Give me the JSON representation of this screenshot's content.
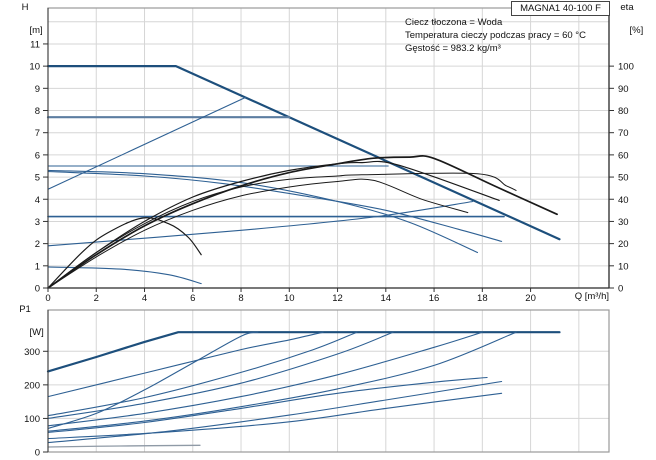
{
  "model_badge": "MAGNA1 40-100 F",
  "info": {
    "line1": "Ciecz tłoczona = Woda",
    "line2": "Temperatura cieczy podczas pracy = 60 °C",
    "line3": "Gęstość = 983.2 kg/m³"
  },
  "labels": {
    "h_title": "H",
    "h_unit": "[m]",
    "eta_title": "eta",
    "eta_unit": "[%]",
    "q_axis": "Q [m³/h]",
    "p1_title": "P1",
    "p1_unit": "[W]"
  },
  "colors": {
    "blue": "#2e6093",
    "blue_dark": "#1d4f7c",
    "slate": "#5c7da1",
    "black": "#1a1a1a",
    "gray": "#8f9aa6",
    "grid": "#d6d6d6",
    "frame": "#9a9a9a",
    "axis": "#333333",
    "text": "#111111"
  },
  "chart_data": [
    {
      "type": "line",
      "id": "hq-eta-chart",
      "x": {
        "min": 0,
        "max": 23.25,
        "tick_labels": [
          0,
          2,
          4,
          6,
          8,
          10,
          12,
          14,
          16,
          18,
          20
        ],
        "grid": [
          2,
          4,
          6,
          8,
          10,
          12,
          14,
          16,
          18,
          20,
          22
        ]
      },
      "y_left": {
        "name": "H [m]",
        "min": 0,
        "max": 12.62,
        "tick_labels": [
          0,
          1,
          2,
          3,
          4,
          5,
          6,
          7,
          8,
          9,
          10,
          11
        ],
        "grid": [
          1,
          2,
          3,
          4,
          5,
          6,
          7,
          8,
          9,
          10,
          11,
          12
        ]
      },
      "y_right": {
        "name": "eta [%]",
        "min": 0,
        "max": 126.2,
        "tick_labels": [
          0,
          10,
          20,
          30,
          40,
          50,
          60,
          70,
          80,
          90,
          100
        ]
      },
      "series": [
        {
          "name": "max-speed-curve",
          "axis": "left",
          "color": "#1d4f7c",
          "width": 2.2,
          "smooth": false,
          "points": [
            [
              0,
              10
            ],
            [
              5.3,
              10
            ],
            [
              21.2,
              2.2
            ]
          ]
        },
        {
          "name": "const-pressure-7.7m",
          "axis": "left",
          "color": "#5c7da1",
          "width": 2.2,
          "smooth": false,
          "points": [
            [
              0,
              7.7
            ],
            [
              10.0,
              7.7
            ]
          ]
        },
        {
          "name": "const-pressure-5.5m",
          "axis": "left",
          "color": "#2e6093",
          "width": 1.1,
          "smooth": false,
          "points": [
            [
              0,
              5.5
            ],
            [
              14.1,
              5.5
            ]
          ]
        },
        {
          "name": "const-pressure-3.2m",
          "axis": "left",
          "color": "#2e6093",
          "width": 1.6,
          "smooth": false,
          "points": [
            [
              0,
              3.22
            ],
            [
              18.9,
              3.22
            ]
          ]
        },
        {
          "name": "prop-pressure-ramp-high",
          "axis": "left",
          "color": "#2e6093",
          "width": 1.1,
          "smooth": false,
          "points": [
            [
              0,
              4.45
            ],
            [
              8.2,
              8.6
            ]
          ]
        },
        {
          "name": "prop-pressure-ramp-low",
          "axis": "left",
          "color": "#2e6093",
          "width": 1.1,
          "smooth": true,
          "points": [
            [
              0,
              1.9
            ],
            [
              8,
              2.6
            ],
            [
              13.5,
              3.2
            ],
            [
              17.6,
              3.9
            ]
          ]
        },
        {
          "name": "speed-curve-a",
          "axis": "left",
          "color": "#2e6093",
          "width": 1.1,
          "smooth": true,
          "points": [
            [
              0,
              5.3
            ],
            [
              4,
              5.15
            ],
            [
              8,
              4.75
            ],
            [
              12,
              3.9
            ],
            [
              15,
              2.95
            ],
            [
              17.8,
              1.6
            ]
          ]
        },
        {
          "name": "speed-curve-b",
          "axis": "left",
          "color": "#2e6093",
          "width": 1.1,
          "smooth": true,
          "points": [
            [
              0,
              5.25
            ],
            [
              4,
              5.05
            ],
            [
              7.3,
              4.7
            ],
            [
              10.9,
              4.1
            ],
            [
              14,
              3.5
            ],
            [
              17,
              2.65
            ],
            [
              18.8,
              2.1
            ]
          ]
        },
        {
          "name": "min-speed-curve",
          "axis": "left",
          "color": "#2e6093",
          "width": 1.1,
          "smooth": true,
          "points": [
            [
              0,
              0.95
            ],
            [
              3,
              0.85
            ],
            [
              5,
              0.6
            ],
            [
              6.35,
              0.2
            ]
          ]
        },
        {
          "name": "eta-curve-max",
          "axis": "right",
          "color": "#1a1a1a",
          "width": 1.7,
          "smooth": true,
          "points": [
            [
              0,
              0
            ],
            [
              2,
              15
            ],
            [
              4,
              28
            ],
            [
              6,
              38
            ],
            [
              8,
              46
            ],
            [
              10,
              52
            ],
            [
              12,
              56
            ],
            [
              13.5,
              58.5
            ],
            [
              15,
              59
            ],
            [
              16,
              58.4
            ],
            [
              18.5,
              46
            ],
            [
              21.1,
              33.2
            ]
          ]
        },
        {
          "name": "eta-curve-2",
          "axis": "right",
          "color": "#1a1a1a",
          "width": 1.2,
          "smooth": true,
          "points": [
            [
              0,
              0
            ],
            [
              2,
              16
            ],
            [
              4,
              30
            ],
            [
              6,
              41
            ],
            [
              8,
              48
            ],
            [
              10,
              53
            ],
            [
              12,
              56
            ],
            [
              13,
              56.5
            ],
            [
              14.5,
              55.5
            ],
            [
              18.7,
              39.5
            ]
          ]
        },
        {
          "name": "eta-curve-flat-1",
          "axis": "right",
          "color": "#1a1a1a",
          "width": 1.0,
          "smooth": true,
          "points": [
            [
              0,
              0
            ],
            [
              2,
              16
            ],
            [
              4,
              29
            ],
            [
              6,
              39
            ],
            [
              8,
              45.5
            ],
            [
              10,
              49
            ],
            [
              12,
              50.5
            ],
            [
              13,
              51
            ],
            [
              17.8,
              51.5
            ],
            [
              19.0,
              46
            ],
            [
              19.4,
              44
            ]
          ]
        },
        {
          "name": "eta-curve-flat-2",
          "axis": "right",
          "color": "#1a1a1a",
          "width": 1.0,
          "smooth": true,
          "points": [
            [
              0,
              0
            ],
            [
              2,
              14
            ],
            [
              4,
              26
            ],
            [
              6,
              35
            ],
            [
              8,
              41.5
            ],
            [
              10,
              45.5
            ],
            [
              12,
              48
            ],
            [
              13.5,
              48.5
            ],
            [
              15.5,
              40
            ],
            [
              17.4,
              34
            ]
          ]
        },
        {
          "name": "eta-curve-min",
          "axis": "right",
          "color": "#1a1a1a",
          "width": 1.2,
          "smooth": true,
          "points": [
            [
              0,
              0
            ],
            [
              1.5,
              17
            ],
            [
              2.5,
              25
            ],
            [
              3.9,
              31.5
            ],
            [
              5,
              29
            ],
            [
              5.8,
              23
            ],
            [
              6.35,
              15
            ]
          ]
        }
      ]
    },
    {
      "type": "line",
      "id": "p1-power-chart",
      "x": {
        "min": 0,
        "max": 23.25,
        "tick_labels": [],
        "grid": [
          2,
          4,
          6,
          8,
          10,
          12,
          14,
          16,
          18,
          20,
          22
        ]
      },
      "y_left": {
        "name": "P1 [W]",
        "min": 0,
        "max": 423,
        "tick_labels": [
          0,
          100,
          200,
          300
        ],
        "grid": [
          100,
          200,
          300
        ]
      },
      "series": [
        {
          "name": "p1-max-limit",
          "axis": "left",
          "color": "#1d4f7c",
          "width": 2.2,
          "smooth": false,
          "points": [
            [
              0,
              240
            ],
            [
              2,
              283
            ],
            [
              4,
              328
            ],
            [
              5.4,
              357
            ],
            [
              21.2,
              357
            ]
          ]
        },
        {
          "name": "p1-curve-steep",
          "axis": "left",
          "color": "#2e6093",
          "width": 1.1,
          "smooth": true,
          "points": [
            [
              0,
              70
            ],
            [
              2,
              115
            ],
            [
              4,
              185
            ],
            [
              6,
              265
            ],
            [
              8,
              345
            ],
            [
              8.7,
              357
            ]
          ]
        },
        {
          "name": "p1-curve-cp77",
          "axis": "left",
          "color": "#2e6093",
          "width": 1.1,
          "smooth": true,
          "points": [
            [
              0,
              165
            ],
            [
              4,
              235
            ],
            [
              8,
              305
            ],
            [
              10,
              334
            ],
            [
              11.4,
              357
            ]
          ]
        },
        {
          "name": "p1-curve-2",
          "axis": "left",
          "color": "#2e6093",
          "width": 1.1,
          "smooth": true,
          "points": [
            [
              0,
              108
            ],
            [
              4,
              162
            ],
            [
              8,
              237
            ],
            [
              11,
              305
            ],
            [
              12.8,
              357
            ]
          ]
        },
        {
          "name": "p1-curve-3",
          "axis": "left",
          "color": "#2e6093",
          "width": 1.1,
          "smooth": true,
          "points": [
            [
              0,
              100
            ],
            [
              4,
              145
            ],
            [
              8,
              205
            ],
            [
              12,
              292
            ],
            [
              14.3,
              357
            ]
          ]
        },
        {
          "name": "p1-curve-4",
          "axis": "left",
          "color": "#2e6093",
          "width": 1.1,
          "smooth": true,
          "points": [
            [
              0,
              78
            ],
            [
              4,
              115
            ],
            [
              8,
              165
            ],
            [
              12,
              230
            ],
            [
              16,
              312
            ],
            [
              18,
              357
            ]
          ]
        },
        {
          "name": "p1-curve-5",
          "axis": "left",
          "color": "#2e6093",
          "width": 1.1,
          "smooth": true,
          "points": [
            [
              0,
              62
            ],
            [
              4,
              92
            ],
            [
              8,
              135
            ],
            [
              12,
              188
            ],
            [
              16,
              258
            ],
            [
              19.4,
              357
            ]
          ]
        },
        {
          "name": "p1-curve-6",
          "axis": "left",
          "color": "#2e6093",
          "width": 1.1,
          "smooth": true,
          "points": [
            [
              0,
              58
            ],
            [
              4,
              88
            ],
            [
              8,
              130
            ],
            [
              12,
              175
            ],
            [
              16,
              208
            ],
            [
              18.2,
              222
            ]
          ]
        },
        {
          "name": "p1-curve-7",
          "axis": "left",
          "color": "#2e6093",
          "width": 1.1,
          "smooth": true,
          "points": [
            [
              0,
              40
            ],
            [
              5,
              60
            ],
            [
              10,
              90
            ],
            [
              14,
              130
            ],
            [
              18.8,
              175
            ]
          ]
        },
        {
          "name": "p1-curve-8",
          "axis": "left",
          "color": "#2e6093",
          "width": 1.1,
          "smooth": true,
          "points": [
            [
              0,
              28
            ],
            [
              5,
              62
            ],
            [
              10,
              110
            ],
            [
              14,
              155
            ],
            [
              18.8,
              210
            ]
          ]
        },
        {
          "name": "p1-min-speed",
          "axis": "left",
          "color": "#8f9aa6",
          "width": 1.3,
          "smooth": true,
          "points": [
            [
              0,
              15
            ],
            [
              3,
              18
            ],
            [
              6.3,
              20
            ]
          ]
        }
      ]
    }
  ]
}
